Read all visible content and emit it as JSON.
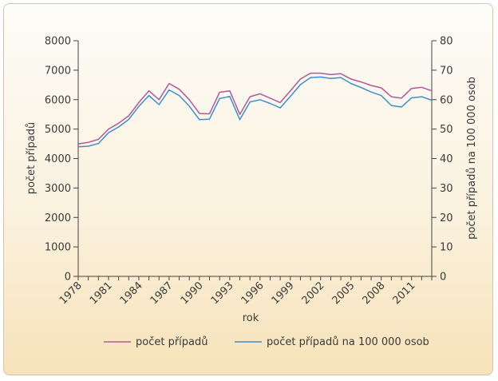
{
  "colors": {
    "series_cases": "#b5579c",
    "series_rate": "#3b8fcf",
    "axis": "#444444"
  },
  "chart_data": {
    "type": "line",
    "title": "",
    "xlabel": "rok",
    "ylabel": "počet případů",
    "y2label": "počet případů na 100 000 osob",
    "ylim": [
      0,
      8000
    ],
    "y2lim": [
      0,
      80
    ],
    "yticks": [
      "0",
      "1000",
      "2000",
      "3000",
      "4000",
      "5000",
      "6000",
      "7000",
      "8000"
    ],
    "y2ticks": [
      "0",
      "10",
      "20",
      "30",
      "40",
      "50",
      "60",
      "70",
      "80"
    ],
    "xticks": [
      "1978",
      "1981",
      "1984",
      "1987",
      "1990",
      "1993",
      "1996",
      "1999",
      "2002",
      "2005",
      "2008",
      "2011"
    ],
    "x": [
      1978,
      1979,
      1980,
      1981,
      1982,
      1983,
      1984,
      1985,
      1986,
      1987,
      1988,
      1989,
      1990,
      1991,
      1992,
      1993,
      1994,
      1995,
      1996,
      1997,
      1998,
      1999,
      2000,
      2001,
      2002,
      2003,
      2004,
      2005,
      2006,
      2007,
      2008,
      2009,
      2010,
      2011,
      2012,
      2013
    ],
    "xlim": [
      1978,
      2013
    ],
    "legend_position": "bottom",
    "series": [
      {
        "name": "počet případů",
        "axis": "left",
        "values": [
          4500,
          4550,
          4650,
          5000,
          5200,
          5450,
          5900,
          6300,
          6000,
          6550,
          6350,
          6000,
          5530,
          5520,
          6250,
          6300,
          5500,
          6100,
          6200,
          6050,
          5900,
          6300,
          6700,
          6900,
          6900,
          6850,
          6880,
          6700,
          6600,
          6480,
          6400,
          6100,
          6050,
          6380,
          6420,
          6300
        ]
      },
      {
        "name": "počet případů na 100 000 osob",
        "axis": "right",
        "values": [
          44.0,
          44.2,
          45.1,
          48.8,
          50.7,
          53.3,
          57.7,
          61.4,
          58.3,
          63.3,
          61.4,
          57.8,
          53.2,
          53.4,
          60.4,
          61.1,
          53.2,
          59.2,
          60.0,
          58.7,
          57.2,
          61.1,
          65.1,
          67.5,
          67.7,
          67.2,
          67.5,
          65.5,
          64.1,
          62.6,
          61.4,
          58.0,
          57.5,
          60.6,
          61.0,
          59.8
        ]
      }
    ]
  }
}
